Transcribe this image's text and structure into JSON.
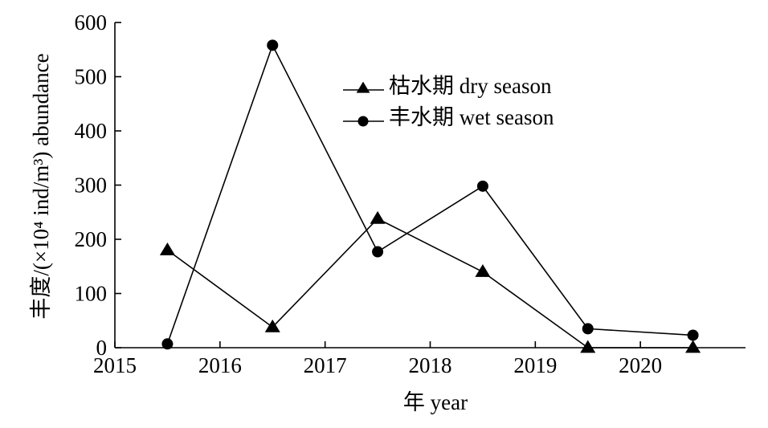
{
  "chart_data": {
    "type": "line",
    "ylabel": "丰度/(×10⁴ ind/m³) abundance",
    "xlabel": "年 year",
    "xlim": [
      2015,
      2021
    ],
    "ylim": [
      0,
      600
    ],
    "x_ticks": [
      2015,
      2016,
      2017,
      2018,
      2019,
      2020
    ],
    "y_ticks": [
      0,
      100,
      200,
      300,
      400,
      500,
      600
    ],
    "grid": false,
    "legend_position": "top-center",
    "series": [
      {
        "name": "枯水期 dry season",
        "marker": "triangle",
        "x": [
          2015.5,
          2016.5,
          2017.5,
          2018.5,
          2019.5,
          2020.5
        ],
        "values": [
          180,
          38,
          238,
          140,
          0,
          0
        ]
      },
      {
        "name": "丰水期 wet season",
        "marker": "circle",
        "x": [
          2015.5,
          2016.5,
          2017.5,
          2018.5,
          2019.5,
          2020.5
        ],
        "values": [
          7,
          558,
          177,
          298,
          35,
          23
        ]
      }
    ]
  }
}
